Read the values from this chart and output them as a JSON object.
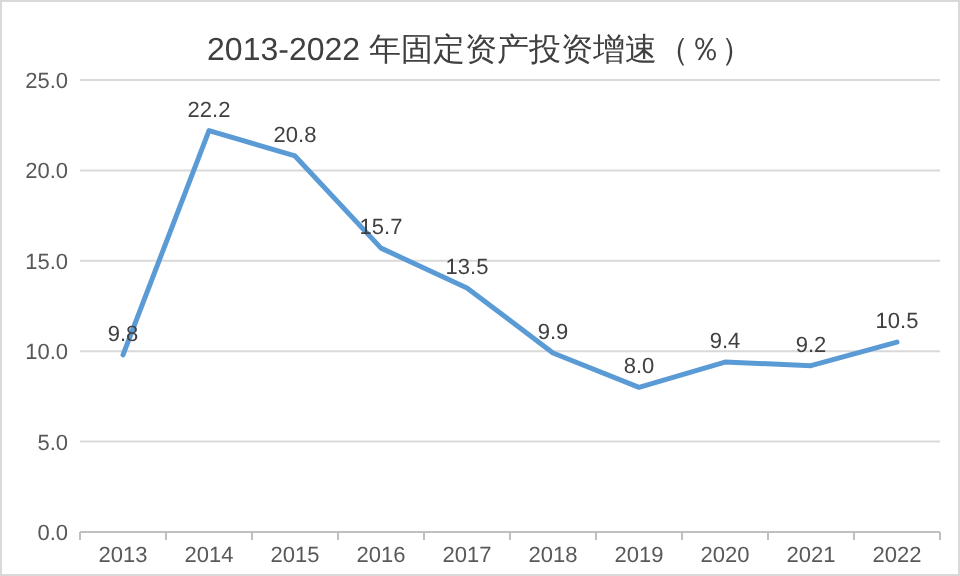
{
  "chart_data": {
    "type": "line",
    "title": "2013-2022 年固定资产投资增速（％）",
    "categories": [
      "2013",
      "2014",
      "2015",
      "2016",
      "2017",
      "2018",
      "2019",
      "2020",
      "2021",
      "2022"
    ],
    "series": [
      {
        "color": "#5b9bd5",
        "values": [
          9.8,
          22.2,
          20.8,
          15.7,
          13.5,
          9.9,
          8.0,
          9.4,
          9.2,
          10.5
        ],
        "value_labels": [
          "9.8",
          "22.2",
          "20.8",
          "15.7",
          "13.5",
          "9.9",
          "8.0",
          "9.4",
          "9.2",
          "10.5"
        ]
      }
    ],
    "ylim": [
      0,
      25
    ],
    "yticks": [
      {
        "value": 0,
        "label": "0.0"
      },
      {
        "value": 5,
        "label": "5.0"
      },
      {
        "value": 10,
        "label": "10.0"
      },
      {
        "value": 15,
        "label": "15.0"
      },
      {
        "value": 20,
        "label": "20.0"
      },
      {
        "value": 25,
        "label": "25.0"
      }
    ],
    "grid": "y",
    "marker": "none",
    "line_style": "solid"
  }
}
